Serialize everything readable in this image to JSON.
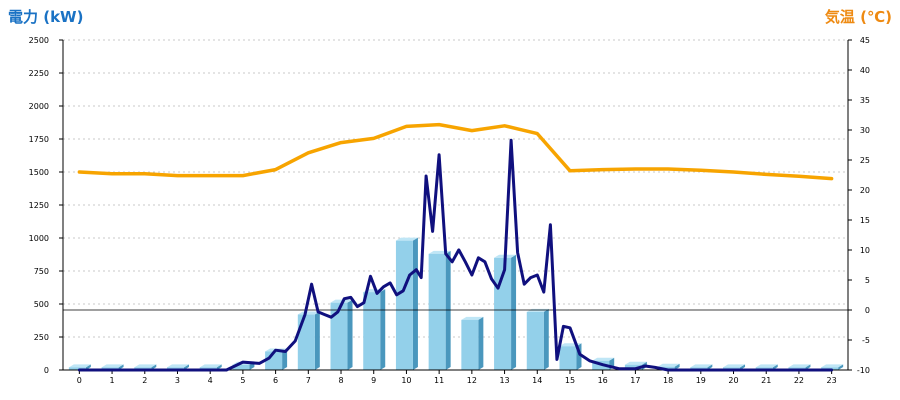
{
  "chart_data": {
    "type": "bar+line",
    "title_left": "電力 (kW)",
    "title_right": "気温 (℃)",
    "categories": [
      "0",
      "1",
      "2",
      "3",
      "4",
      "5",
      "6",
      "7",
      "8",
      "9",
      "10",
      "11",
      "12",
      "13",
      "14",
      "15",
      "16",
      "17",
      "18",
      "19",
      "20",
      "21",
      "22",
      "23"
    ],
    "ylim_left": [
      0,
      2500
    ],
    "yticks_left": [
      0,
      250,
      500,
      750,
      1000,
      1250,
      1500,
      1750,
      2000,
      2250,
      2500
    ],
    "ylim_right": [
      -10,
      45
    ],
    "yticks_right": [
      -10,
      -5,
      0,
      5,
      10,
      15,
      20,
      25,
      30,
      35,
      40,
      45
    ],
    "grid": "horizontal dotted",
    "zero_line_right": 0,
    "series": [
      {
        "kind": "bar",
        "axis": "left",
        "values": [
          20,
          20,
          20,
          20,
          20,
          40,
          140,
          420,
          510,
          590,
          980,
          880,
          380,
          850,
          440,
          180,
          70,
          40,
          25,
          20,
          20,
          20,
          20,
          20
        ]
      },
      {
        "kind": "line",
        "axis": "left",
        "x": [
          0,
          1,
          2,
          3,
          4,
          4.5,
          5,
          5.5,
          5.8,
          6,
          6.3,
          6.6,
          6.9,
          7.1,
          7.3,
          7.5,
          7.7,
          7.9,
          8.1,
          8.3,
          8.5,
          8.7,
          8.9,
          9.1,
          9.3,
          9.5,
          9.7,
          9.9,
          10.1,
          10.3,
          10.45,
          10.6,
          10.8,
          11.0,
          11.2,
          11.4,
          11.6,
          11.8,
          12.0,
          12.2,
          12.4,
          12.6,
          12.8,
          13.0,
          13.2,
          13.4,
          13.6,
          13.8,
          14.0,
          14.2,
          14.4,
          14.6,
          14.8,
          15.0,
          15.3,
          15.6,
          16.0,
          16.5,
          17.0,
          17.3,
          17.6,
          18,
          19,
          20,
          21,
          22,
          23
        ],
        "values": [
          0,
          0,
          0,
          0,
          0,
          0,
          60,
          50,
          90,
          150,
          140,
          220,
          420,
          650,
          440,
          420,
          400,
          440,
          540,
          550,
          480,
          510,
          710,
          580,
          630,
          660,
          570,
          600,
          720,
          760,
          700,
          1470,
          1050,
          1630,
          880,
          820,
          910,
          820,
          720,
          850,
          820,
          690,
          620,
          760,
          1740,
          890,
          650,
          700,
          720,
          590,
          1100,
          80,
          330,
          320,
          120,
          70,
          40,
          10,
          10,
          30,
          20,
          0,
          0,
          0,
          0,
          0,
          0
        ]
      },
      {
        "kind": "line",
        "axis": "right",
        "values": [
          23.0,
          22.7,
          22.7,
          22.4,
          22.4,
          22.4,
          23.4,
          26.2,
          27.9,
          28.6,
          30.6,
          30.9,
          29.9,
          30.7,
          29.4,
          23.2,
          23.4,
          23.5,
          23.5,
          23.3,
          23.0,
          22.6,
          22.3,
          21.9
        ]
      }
    ]
  },
  "colors": {
    "title_left": "#1a72c4",
    "title_right": "#ee8a12",
    "bar_front": "#93d0ea",
    "bar_side": "#4a97bd",
    "bar_top": "#bfe6f6",
    "power_line": "#10107e",
    "temp_line": "#f7a400",
    "grid": "#b8b8b8",
    "axis": "#000000"
  }
}
